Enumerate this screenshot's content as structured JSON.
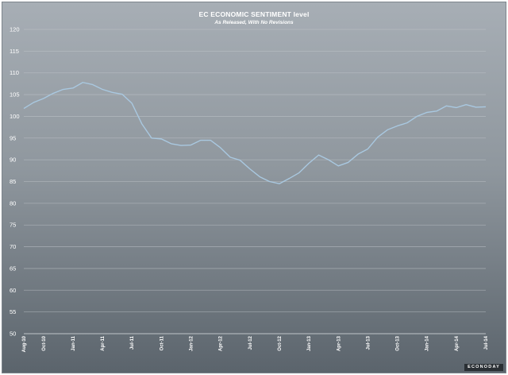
{
  "brand": "ECONODAY",
  "chart_data": {
    "type": "line",
    "title": "EC ECONOMIC SENTIMENT level",
    "subtitle": "As Released, With No Revisions",
    "xlabel": "",
    "ylabel": "",
    "ylim": [
      50,
      120
    ],
    "yticks": [
      50,
      55,
      60,
      65,
      70,
      75,
      80,
      85,
      90,
      95,
      100,
      105,
      110,
      115,
      120
    ],
    "grid": true,
    "x_tick_labels": [
      "Aug-10",
      "Oct-10",
      "Jan-11",
      "Apr-11",
      "Jul-11",
      "Oct-11",
      "Jan-12",
      "Apr-12",
      "Jul-12",
      "Oct-12",
      "Jan-13",
      "Apr-13",
      "Jul-13",
      "Oct-13",
      "Jan-14",
      "Apr-14",
      "Jul-14"
    ],
    "x_tick_index": [
      0,
      2,
      5,
      8,
      11,
      14,
      17,
      20,
      23,
      26,
      29,
      32,
      35,
      38,
      41,
      44,
      47
    ],
    "x": [
      "Aug-10",
      "Sep-10",
      "Oct-10",
      "Nov-10",
      "Dec-10",
      "Jan-11",
      "Feb-11",
      "Mar-11",
      "Apr-11",
      "May-11",
      "Jun-11",
      "Jul-11",
      "Aug-11",
      "Sep-11",
      "Oct-11",
      "Nov-11",
      "Dec-11",
      "Jan-12",
      "Feb-12",
      "Mar-12",
      "Apr-12",
      "May-12",
      "Jun-12",
      "Jul-12",
      "Aug-12",
      "Sep-12",
      "Oct-12",
      "Nov-12",
      "Dec-12",
      "Jan-13",
      "Feb-13",
      "Mar-13",
      "Apr-13",
      "May-13",
      "Jun-13",
      "Jul-13",
      "Aug-13",
      "Sep-13",
      "Oct-13",
      "Nov-13",
      "Dec-13",
      "Jan-14",
      "Feb-14",
      "Mar-14",
      "Apr-14",
      "May-14",
      "Jun-14",
      "Jul-14"
    ],
    "series": [
      {
        "name": "",
        "color": "#a9c8e0",
        "values": [
          101.8,
          103.2,
          104.1,
          105.3,
          106.2,
          106.5,
          107.8,
          107.3,
          106.2,
          105.5,
          105.1,
          103.0,
          98.3,
          95.0,
          94.8,
          93.7,
          93.3,
          93.4,
          94.5,
          94.5,
          92.8,
          90.6,
          89.9,
          87.9,
          86.1,
          85.0,
          84.5,
          85.7,
          87.0,
          89.2,
          91.1,
          90.0,
          88.6,
          89.4,
          91.3,
          92.5,
          95.2,
          96.9,
          97.8,
          98.5,
          100.0,
          100.9,
          101.2,
          102.4,
          102.0,
          102.7,
          102.1,
          102.2
        ]
      }
    ]
  }
}
